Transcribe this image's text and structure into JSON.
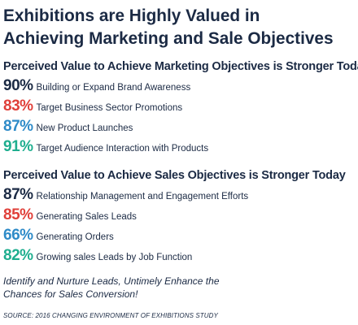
{
  "title_line1": "Exhibitions are Highly Valued in",
  "title_line2": "Achieving Marketing and Sale Objectives",
  "chart_data": [
    {
      "type": "table",
      "title": "Perceived Value to Achieve Marketing Objectives is Stronger Today",
      "rows": [
        {
          "value": "90%",
          "label": "Building or Expand Brand Awareness",
          "color": "#1b2a44"
        },
        {
          "value": "83%",
          "label": "Target Business Sector Promotions",
          "color": "#e0403a"
        },
        {
          "value": "87%",
          "label": "New Product Launches",
          "color": "#2e8bc8"
        },
        {
          "value": "91%",
          "label": "Target Audience Interaction with Products",
          "color": "#1fae8f"
        }
      ]
    },
    {
      "type": "table",
      "title": "Perceived Value to Achieve Sales Objectives is Stronger Today",
      "rows": [
        {
          "value": "87%",
          "label": "Relationship Management and Engagement Efforts",
          "color": "#1b2a44"
        },
        {
          "value": "85%",
          "label": "Generating Sales Leads",
          "color": "#e0403a"
        },
        {
          "value": "66%",
          "label": "Generating Orders",
          "color": "#2e8bc8"
        },
        {
          "value": "82%",
          "label": "Growing sales Leads by Job Function",
          "color": "#1fae8f"
        }
      ]
    }
  ],
  "note_line1": "Identify and Nurture Leads, Untimely Enhance the",
  "note_line2": "Chances for Sales Conversion!",
  "source": "SOURCE: 2016 CHANGING ENVIRONMENT OF EXHIBITIONS STUDY"
}
